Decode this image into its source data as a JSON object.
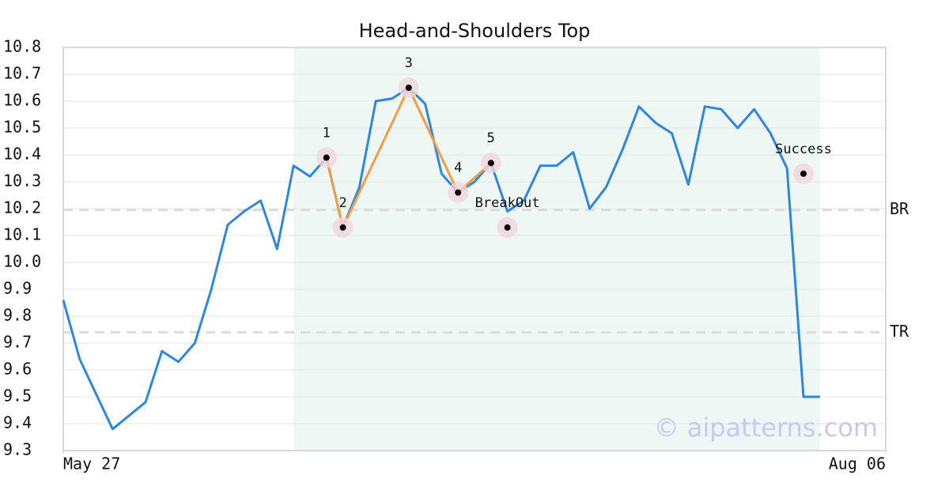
{
  "chart_data": {
    "type": "line",
    "title": "Head-and-Shoulders Top",
    "x": [
      0,
      1,
      2,
      3,
      4,
      5,
      6,
      7,
      8,
      9,
      10,
      11,
      12,
      13,
      14,
      15,
      16,
      17,
      18,
      19,
      20,
      21,
      22,
      23,
      24,
      25,
      26,
      27,
      28,
      29,
      30,
      31,
      32,
      33,
      34,
      35,
      36,
      37,
      38,
      39,
      40,
      41,
      42,
      43,
      44,
      45,
      46
    ],
    "series": [
      {
        "color": "#2e86de",
        "values": [
          9.86,
          9.64,
          9.51,
          9.38,
          9.43,
          9.48,
          9.67,
          9.63,
          9.7,
          9.9,
          10.14,
          10.19,
          10.23,
          10.05,
          10.36,
          10.32,
          10.39,
          10.13,
          10.28,
          10.6,
          10.61,
          10.65,
          10.59,
          10.33,
          10.26,
          10.3,
          10.37,
          10.19,
          10.23,
          10.36,
          10.36,
          10.41,
          10.2,
          10.28,
          10.42,
          10.58,
          10.52,
          10.48,
          10.29,
          10.58,
          10.57,
          10.5,
          10.57,
          10.48,
          10.35,
          9.5,
          9.5
        ]
      }
    ],
    "xlim": [
      0,
      50
    ],
    "xticks": [
      {
        "value": 0,
        "label": "May 27"
      },
      {
        "value": 50,
        "label": "Aug 06"
      }
    ],
    "ylim": [
      9.3,
      10.8
    ],
    "yticks": [
      9.3,
      9.4,
      9.5,
      9.6,
      9.7,
      9.8,
      9.9,
      {
        "value": 10.0,
        "label": "10.0"
      },
      10.1,
      10.2,
      10.3,
      10.4,
      10.5,
      10.6,
      10.7,
      10.8
    ],
    "grid": true,
    "highlight": [
      14,
      46
    ],
    "pattern_color": "#f39c46",
    "points": [
      {
        "label": "1",
        "x": 16,
        "y": 10.39
      },
      {
        "label": "2",
        "x": 17,
        "y": 10.13
      },
      {
        "label": "3",
        "x": 21,
        "y": 10.65
      },
      {
        "label": "4",
        "x": 24,
        "y": 10.26
      },
      {
        "label": "5",
        "x": 26,
        "y": 10.37
      },
      {
        "label": "BreakOut",
        "x": 27,
        "y": 10.13
      },
      {
        "label": "Success",
        "x": 45,
        "y": 10.33
      }
    ],
    "pattern_points": 5,
    "levels": [
      {
        "label": "BR",
        "value": 10.195
      },
      {
        "label": "TR",
        "value": 9.74
      }
    ],
    "watermark": "© aipatterns.com"
  }
}
